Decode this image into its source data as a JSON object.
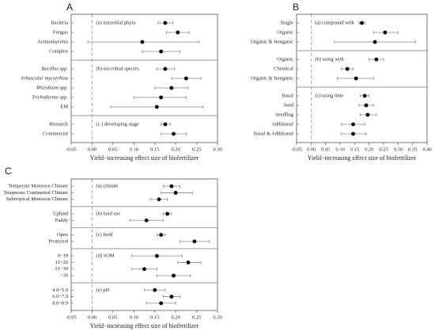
{
  "chart_data": [
    {
      "type": "forest",
      "panel_label": "A",
      "xlabel": "Yield−increasing effect size of biofertilizer",
      "xlim": [
        -0.05,
        0.3
      ],
      "xticks": [
        -0.05,
        {
          "value": 0,
          "label": "0.00"
        },
        0.05,
        {
          "value": 0.1,
          "label": "0.10"
        },
        0.15,
        {
          "value": 0.2,
          "label": "0.20"
        },
        0.25,
        {
          "value": 0.3,
          "label": "0.30"
        }
      ],
      "zero_line": 0,
      "groups": [
        {
          "label": "(a) microbial phyla",
          "categories": [
            "Bacteria",
            "Fungus",
            "Actinomycetes",
            "Complex"
          ],
          "values": [
            0.175,
            0.205,
            0.12,
            0.165
          ],
          "lower": [
            0.158,
            0.178,
            -0.01,
            0.12
          ],
          "upper": [
            0.193,
            0.232,
            0.255,
            0.21
          ]
        },
        {
          "label": "(b) microbial species",
          "categories": [
            "Bacillus spp.",
            "Arbuscular mycorrhiza",
            "Rhizobium spp.",
            "Trichoderma spp.",
            "EM"
          ],
          "italic": [
            true,
            true,
            true,
            true,
            false
          ],
          "values": [
            0.175,
            0.225,
            0.19,
            0.165,
            0.155
          ],
          "lower": [
            0.155,
            0.19,
            0.15,
            0.1,
            0.045
          ],
          "upper": [
            0.197,
            0.26,
            0.23,
            0.225,
            0.265
          ]
        },
        {
          "label": "(c ) developing stage",
          "categories": [
            "Research",
            "Commercial"
          ],
          "values": [
            0.175,
            0.195
          ],
          "lower": [
            0.165,
            0.165
          ],
          "upper": [
            0.188,
            0.225
          ]
        }
      ]
    },
    {
      "type": "forest",
      "panel_label": "B",
      "xlabel": "Yield−increasing effect size of biofertilizer",
      "xlim": [
        -0.05,
        0.4
      ],
      "xticks": [
        -0.05,
        {
          "value": 0,
          "label": "0.00"
        },
        0.05,
        {
          "value": 0.1,
          "label": "0.10"
        },
        0.15,
        {
          "value": 0.2,
          "label": "0.20"
        },
        0.25,
        {
          "value": 0.3,
          "label": "0.30"
        },
        0.35,
        {
          "value": 0.4,
          "label": "0.40"
        }
      ],
      "zero_line": 0,
      "groups": [
        {
          "label": "(a) compound with",
          "categories": [
            "Single",
            "Organic",
            "Organic & Inorganic"
          ],
          "values": [
            0.175,
            0.255,
            0.22
          ],
          "lower": [
            0.165,
            0.215,
            0.08
          ],
          "upper": [
            0.185,
            0.3,
            0.36
          ]
        },
        {
          "label": "(b) using with",
          "categories": [
            "Organic",
            "Chemical",
            "Organic & Inorganic"
          ],
          "values": [
            0.225,
            0.125,
            0.155
          ],
          "lower": [
            0.2,
            0.105,
            0.09
          ],
          "upper": [
            0.25,
            0.145,
            0.215
          ]
        },
        {
          "label": "(c) using time",
          "categories": [
            "Basal",
            "Seed",
            "Seedling",
            "Additional",
            "Basal & Additional"
          ],
          "values": [
            0.185,
            0.19,
            0.195,
            0.145,
            0.145
          ],
          "lower": [
            0.17,
            0.165,
            0.17,
            0.105,
            0.105
          ],
          "upper": [
            0.2,
            0.215,
            0.225,
            0.185,
            0.19
          ]
        }
      ]
    },
    {
      "type": "forest",
      "panel_label": "C",
      "xlabel": "Yield−increasing effect size of biofertilizer",
      "xlim": [
        -0.05,
        0.3
      ],
      "xticks": [
        -0.05,
        {
          "value": 0,
          "label": "0.00"
        },
        0.05,
        {
          "value": 0.1,
          "label": "0.10"
        },
        0.15,
        {
          "value": 0.2,
          "label": "0.20"
        },
        0.25,
        {
          "value": 0.3,
          "label": "0.30"
        }
      ],
      "zero_line": 0,
      "groups": [
        {
          "label": "(a) climate",
          "categories": [
            "Temperate Monsoon Climate",
            "Temperate Continental Climate",
            "Subtropical Monsoon Climate"
          ],
          "values": [
            0.19,
            0.2,
            0.16
          ],
          "lower": [
            0.17,
            0.165,
            0.14
          ],
          "upper": [
            0.21,
            0.24,
            0.18
          ]
        },
        {
          "label": "(b) land use",
          "categories": [
            "Upland",
            "Paddy"
          ],
          "values": [
            0.18,
            0.13
          ],
          "lower": [
            0.17,
            0.09
          ],
          "upper": [
            0.19,
            0.17
          ]
        },
        {
          "label": "(c) field",
          "categories": [
            "Open",
            "Protected"
          ],
          "values": [
            0.165,
            0.245
          ],
          "lower": [
            0.155,
            0.21
          ],
          "upper": [
            0.175,
            0.28
          ]
        },
        {
          "label": "(d) SOM",
          "categories": [
            "0~10",
            "11~20",
            "21~30",
            ">30"
          ],
          "values": [
            0.155,
            0.23,
            0.125,
            0.195
          ],
          "lower": [
            0.095,
            0.205,
            0.095,
            0.155
          ],
          "upper": [
            0.215,
            0.26,
            0.155,
            0.235
          ]
        },
        {
          "label": "(e) pH",
          "categories": [
            "4.0~5.9",
            "6.0~7.9",
            "8.0~8.9"
          ],
          "values": [
            0.15,
            0.19,
            0.165
          ],
          "lower": [
            0.125,
            0.17,
            0.13
          ],
          "upper": [
            0.175,
            0.21,
            0.2
          ]
        }
      ]
    }
  ]
}
